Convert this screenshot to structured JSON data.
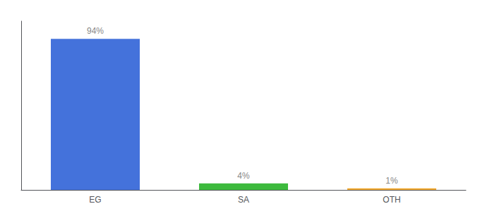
{
  "chart_data": {
    "type": "bar",
    "categories": [
      "EG",
      "SA",
      "OTH"
    ],
    "values": [
      94,
      4,
      1
    ],
    "colors": [
      "#4472db",
      "#3dba3d",
      "#f0a830"
    ],
    "value_labels": [
      "94%",
      "4%",
      "1%"
    ],
    "data_labels": true,
    "ylim": [
      0,
      105
    ],
    "tick_labels": "x",
    "grid": false
  }
}
